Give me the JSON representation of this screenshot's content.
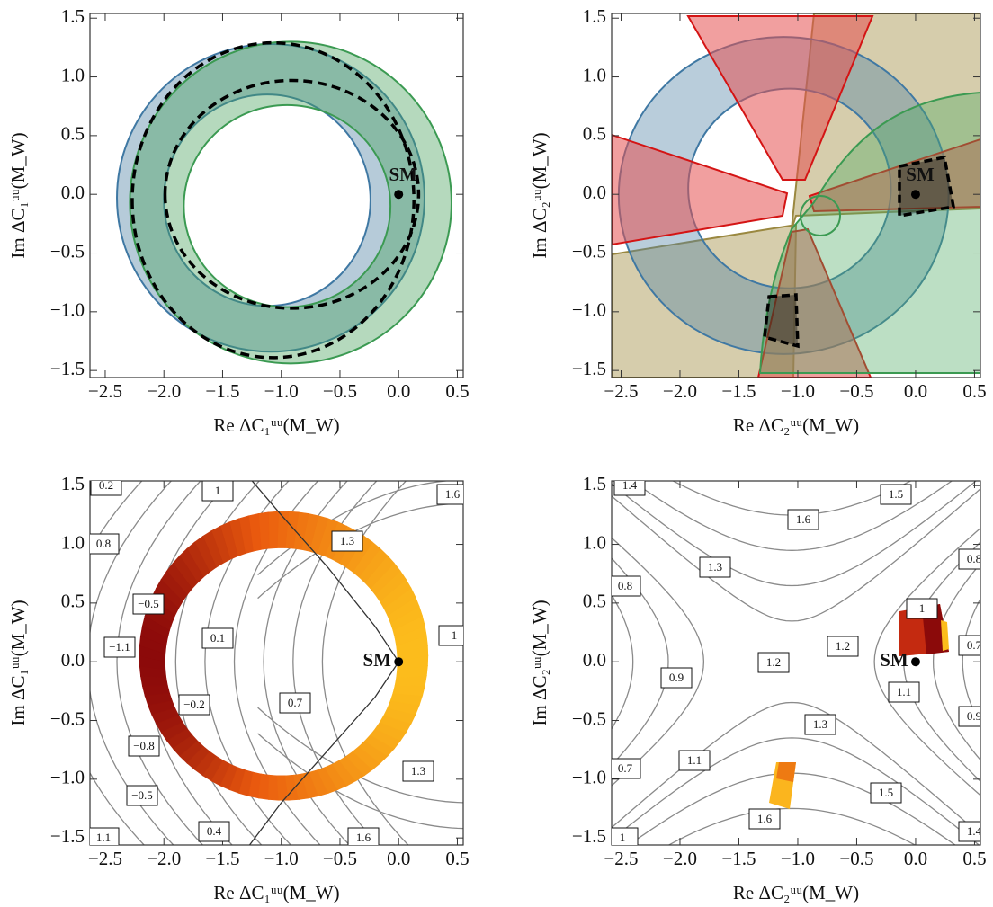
{
  "chart_data": [
    {
      "type": "region",
      "xlabel": "Re ΔC₁ᵘᵘ(M_W)",
      "ylabel": "Im ΔC₁ᵘᵘ(M_W)",
      "xlim": [
        -2.63,
        0.55
      ],
      "ylim": [
        -1.56,
        1.54
      ],
      "xticks": [
        {
          "value": -2.5,
          "label": "−2.5"
        },
        {
          "value": -2,
          "label": "−2.0"
        },
        {
          "value": -1.5,
          "label": "−1.5"
        },
        {
          "value": -1,
          "label": "−1.0"
        },
        {
          "value": -0.5,
          "label": "−0.5"
        },
        {
          "value": 0,
          "label": "0.0"
        },
        0.5
      ],
      "yticks": [
        {
          "value": -1.5,
          "label": "−1.5"
        },
        {
          "value": -1,
          "label": "−1.0"
        },
        {
          "value": -0.5,
          "label": "−0.5"
        },
        {
          "value": 0,
          "label": "0.0"
        },
        0.5,
        {
          "value": 1,
          "label": "1.0"
        },
        1.5
      ],
      "annotation": {
        "text": "SM",
        "x": 0,
        "y": 0
      }
    },
    {
      "type": "region",
      "xlabel": "Re ΔC₂ᵘᵘ(M_W)",
      "ylabel": "Im ΔC₂ᵘᵘ(M_W)",
      "xlim": [
        -2.58,
        0.55
      ],
      "ylim": [
        -1.56,
        1.54
      ],
      "xticks": [
        {
          "value": -2.5,
          "label": "−2.5"
        },
        {
          "value": -2,
          "label": "−2.0"
        },
        {
          "value": -1.5,
          "label": "−1.5"
        },
        {
          "value": -1,
          "label": "−1.0"
        },
        {
          "value": -0.5,
          "label": "−0.5"
        },
        {
          "value": 0,
          "label": "0.0"
        },
        0.5
      ],
      "yticks": [
        {
          "value": -1.5,
          "label": "−1.5"
        },
        {
          "value": -1,
          "label": "−1.0"
        },
        {
          "value": -0.5,
          "label": "−0.5"
        },
        {
          "value": 0,
          "label": "0.0"
        },
        0.5,
        {
          "value": 1,
          "label": "1.0"
        },
        1.5
      ],
      "annotation": {
        "text": "SM",
        "x": 0,
        "y": 0
      }
    },
    {
      "type": "contour",
      "xlabel": "Re ΔC₁ᵘᵘ(M_W)",
      "ylabel": "Im ΔC₁ᵘᵘ(M_W)",
      "xlim": [
        -2.63,
        0.55
      ],
      "ylim": [
        -1.56,
        1.54
      ],
      "xticks": [
        {
          "value": -2.5,
          "label": "−2.5"
        },
        {
          "value": -2,
          "label": "−2.0"
        },
        {
          "value": -1.5,
          "label": "−1.5"
        },
        {
          "value": -1,
          "label": "−1.0"
        },
        {
          "value": -0.5,
          "label": "−0.5"
        },
        {
          "value": 0,
          "label": "0.0"
        },
        0.5
      ],
      "yticks": [
        {
          "value": -1.5,
          "label": "−1.5"
        },
        {
          "value": -1,
          "label": "−1.0"
        },
        {
          "value": -0.5,
          "label": "−0.5"
        },
        {
          "value": 0,
          "label": "0.0"
        },
        0.5,
        {
          "value": 1,
          "label": "1.0"
        },
        1.5
      ],
      "annotation": {
        "text": "SM",
        "x": 0,
        "y": 0
      },
      "contour_labels": [
        0.2,
        1,
        1.6,
        0.8,
        1.3,
        {
          "value": -0.5,
          "label": "−0.5"
        },
        0.1,
        1,
        {
          "value": -1.1,
          "label": "−1.1"
        },
        {
          "value": -0.2,
          "label": "−0.2"
        },
        0.7,
        {
          "value": -0.8,
          "label": "−0.8"
        },
        1.3,
        {
          "value": -0.5,
          "label": "−0.5"
        },
        0.4,
        1.6,
        1.1
      ]
    },
    {
      "type": "contour",
      "xlabel": "Re ΔC₂ᵘᵘ(M_W)",
      "ylabel": "Im ΔC₂ᵘᵘ(M_W)",
      "xlim": [
        -2.58,
        0.55
      ],
      "ylim": [
        -1.56,
        1.54
      ],
      "xticks": [
        {
          "value": -2.5,
          "label": "−2.5"
        },
        {
          "value": -2,
          "label": "−2.0"
        },
        {
          "value": -1.5,
          "label": "−1.5"
        },
        {
          "value": -1,
          "label": "−1.0"
        },
        {
          "value": -0.5,
          "label": "−0.5"
        },
        {
          "value": 0,
          "label": "0.0"
        },
        0.5
      ],
      "yticks": [
        {
          "value": -1.5,
          "label": "−1.5"
        },
        {
          "value": -1,
          "label": "−1.0"
        },
        {
          "value": -0.5,
          "label": "−0.5"
        },
        {
          "value": 0,
          "label": "0.0"
        },
        0.5,
        {
          "value": 1,
          "label": "1.0"
        },
        1.5
      ],
      "annotation": {
        "text": "SM",
        "x": 0,
        "y": 0
      },
      "contour_labels": [
        1.4,
        1.5,
        1.6,
        1.3,
        0.8,
        0.8,
        1,
        1.2,
        1.2,
        0.7,
        0.9,
        1.1,
        1.3,
        0.9,
        1.1,
        0.7,
        1.5,
        1.6,
        1,
        1.4
      ]
    }
  ]
}
